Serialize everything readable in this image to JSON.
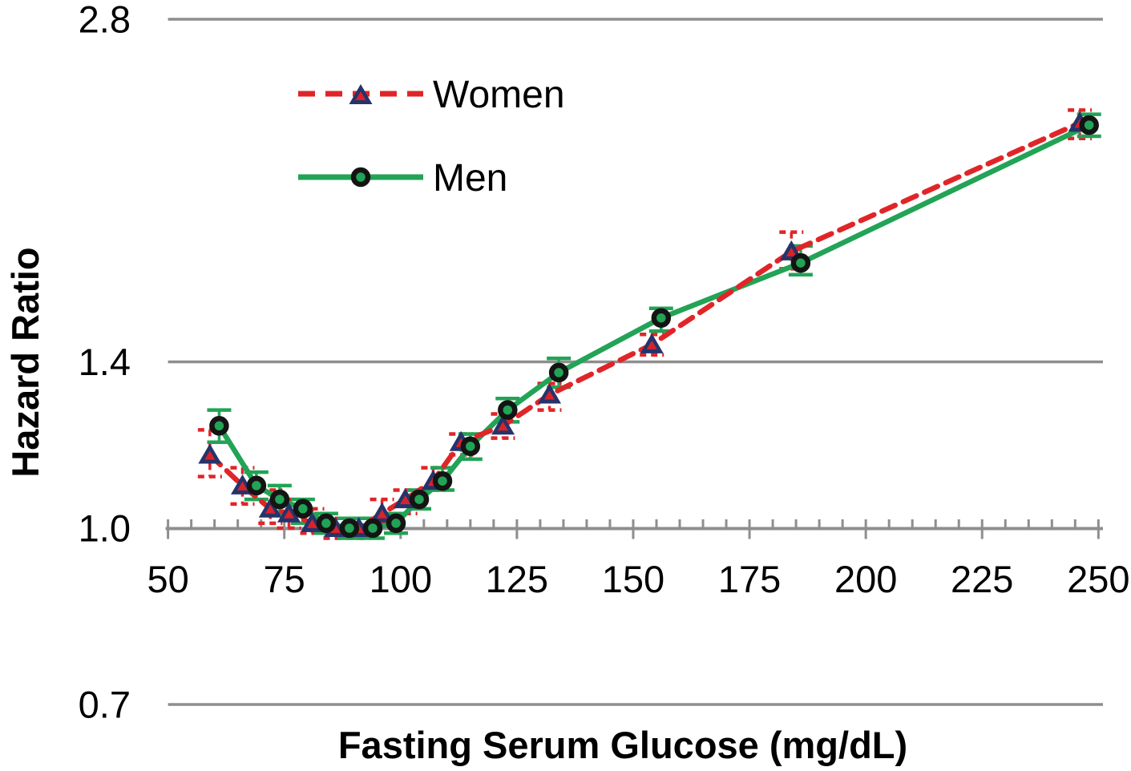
{
  "chart_data": {
    "type": "line",
    "title": "",
    "xlabel": "Fasting Serum Glucose (mg/dL)",
    "ylabel": "Hazard Ratio",
    "x_ticks": [
      50,
      75,
      100,
      125,
      150,
      175,
      200,
      225,
      250
    ],
    "x_minor_step": 5,
    "xlim": [
      50,
      251
    ],
    "y_scale": "log2",
    "ylim": [
      0.7,
      2.8
    ],
    "y_ticks": [
      {
        "value": 2.8,
        "label": "2.8"
      },
      {
        "value": 1.4,
        "label": "1.4"
      },
      {
        "value": 1.0,
        "label": "1.0"
      },
      {
        "value": 0.7,
        "label": "0.7"
      }
    ],
    "y_gridlines": [
      2.8,
      1.4,
      0.7
    ],
    "baseline_axis_value": 1.0,
    "grid": "horizontal-only",
    "legend_position": "top-left-inside",
    "series": [
      {
        "name": "Women",
        "line_style": "dashed",
        "line_color": "#E02528",
        "error_color": "#E02528",
        "marker": "triangle",
        "marker_color": "#26336B",
        "marker_inner_color": "#D8232A",
        "points": [
          {
            "x": 59,
            "y": 1.16,
            "lo": 1.11,
            "hi": 1.22
          },
          {
            "x": 66,
            "y": 1.09,
            "lo": 1.05,
            "hi": 1.13
          },
          {
            "x": 72,
            "y": 1.04,
            "lo": 1.01,
            "hi": 1.08
          },
          {
            "x": 76,
            "y": 1.03,
            "lo": 1.0,
            "hi": 1.06
          },
          {
            "x": 81,
            "y": 1.01,
            "lo": 0.99,
            "hi": 1.04
          },
          {
            "x": 86,
            "y": 1.0,
            "lo": 0.98,
            "hi": 1.02
          },
          {
            "x": 91,
            "y": 1.0,
            "lo": 0.98,
            "hi": 1.02
          },
          {
            "x": 96,
            "y": 1.03,
            "lo": 1.01,
            "hi": 1.06
          },
          {
            "x": 101,
            "y": 1.06,
            "lo": 1.03,
            "hi": 1.08
          },
          {
            "x": 107,
            "y": 1.1,
            "lo": 1.08,
            "hi": 1.13
          },
          {
            "x": 113,
            "y": 1.19,
            "lo": 1.16,
            "hi": 1.21
          },
          {
            "x": 122,
            "y": 1.23,
            "lo": 1.2,
            "hi": 1.26
          },
          {
            "x": 132,
            "y": 1.31,
            "lo": 1.27,
            "hi": 1.34
          },
          {
            "x": 154,
            "y": 1.45,
            "lo": 1.42,
            "hi": 1.48
          },
          {
            "x": 184,
            "y": 1.75,
            "lo": 1.69,
            "hi": 1.82
          },
          {
            "x": 246,
            "y": 2.27,
            "lo": 2.2,
            "hi": 2.33
          }
        ]
      },
      {
        "name": "Men",
        "line_style": "solid",
        "line_color": "#22A356",
        "error_color": "#22A356",
        "marker": "circle",
        "marker_color": "#22A356",
        "marker_ring_color": "#141414",
        "points": [
          {
            "x": 61,
            "y": 1.23,
            "lo": 1.19,
            "hi": 1.27
          },
          {
            "x": 69,
            "y": 1.09,
            "lo": 1.06,
            "hi": 1.12
          },
          {
            "x": 74,
            "y": 1.06,
            "lo": 1.03,
            "hi": 1.09
          },
          {
            "x": 79,
            "y": 1.04,
            "lo": 1.01,
            "hi": 1.06
          },
          {
            "x": 84,
            "y": 1.01,
            "lo": 0.99,
            "hi": 1.03
          },
          {
            "x": 89,
            "y": 1.0,
            "lo": 0.98,
            "hi": 1.02
          },
          {
            "x": 94,
            "y": 1.0,
            "lo": 0.98,
            "hi": 1.02
          },
          {
            "x": 99,
            "y": 1.01,
            "lo": 0.99,
            "hi": 1.03
          },
          {
            "x": 104,
            "y": 1.06,
            "lo": 1.04,
            "hi": 1.08
          },
          {
            "x": 109,
            "y": 1.1,
            "lo": 1.08,
            "hi": 1.13
          },
          {
            "x": 115,
            "y": 1.18,
            "lo": 1.15,
            "hi": 1.21
          },
          {
            "x": 123,
            "y": 1.27,
            "lo": 1.24,
            "hi": 1.3
          },
          {
            "x": 134,
            "y": 1.37,
            "lo": 1.33,
            "hi": 1.41
          },
          {
            "x": 156,
            "y": 1.53,
            "lo": 1.49,
            "hi": 1.56
          },
          {
            "x": 186,
            "y": 1.71,
            "lo": 1.67,
            "hi": 1.77
          },
          {
            "x": 248,
            "y": 2.26,
            "lo": 2.21,
            "hi": 2.31
          }
        ]
      }
    ],
    "colors": {
      "grid": "#8E8E8E",
      "axis": "#8E8E8E",
      "text": "#000000",
      "background": "#FFFFFF"
    }
  }
}
